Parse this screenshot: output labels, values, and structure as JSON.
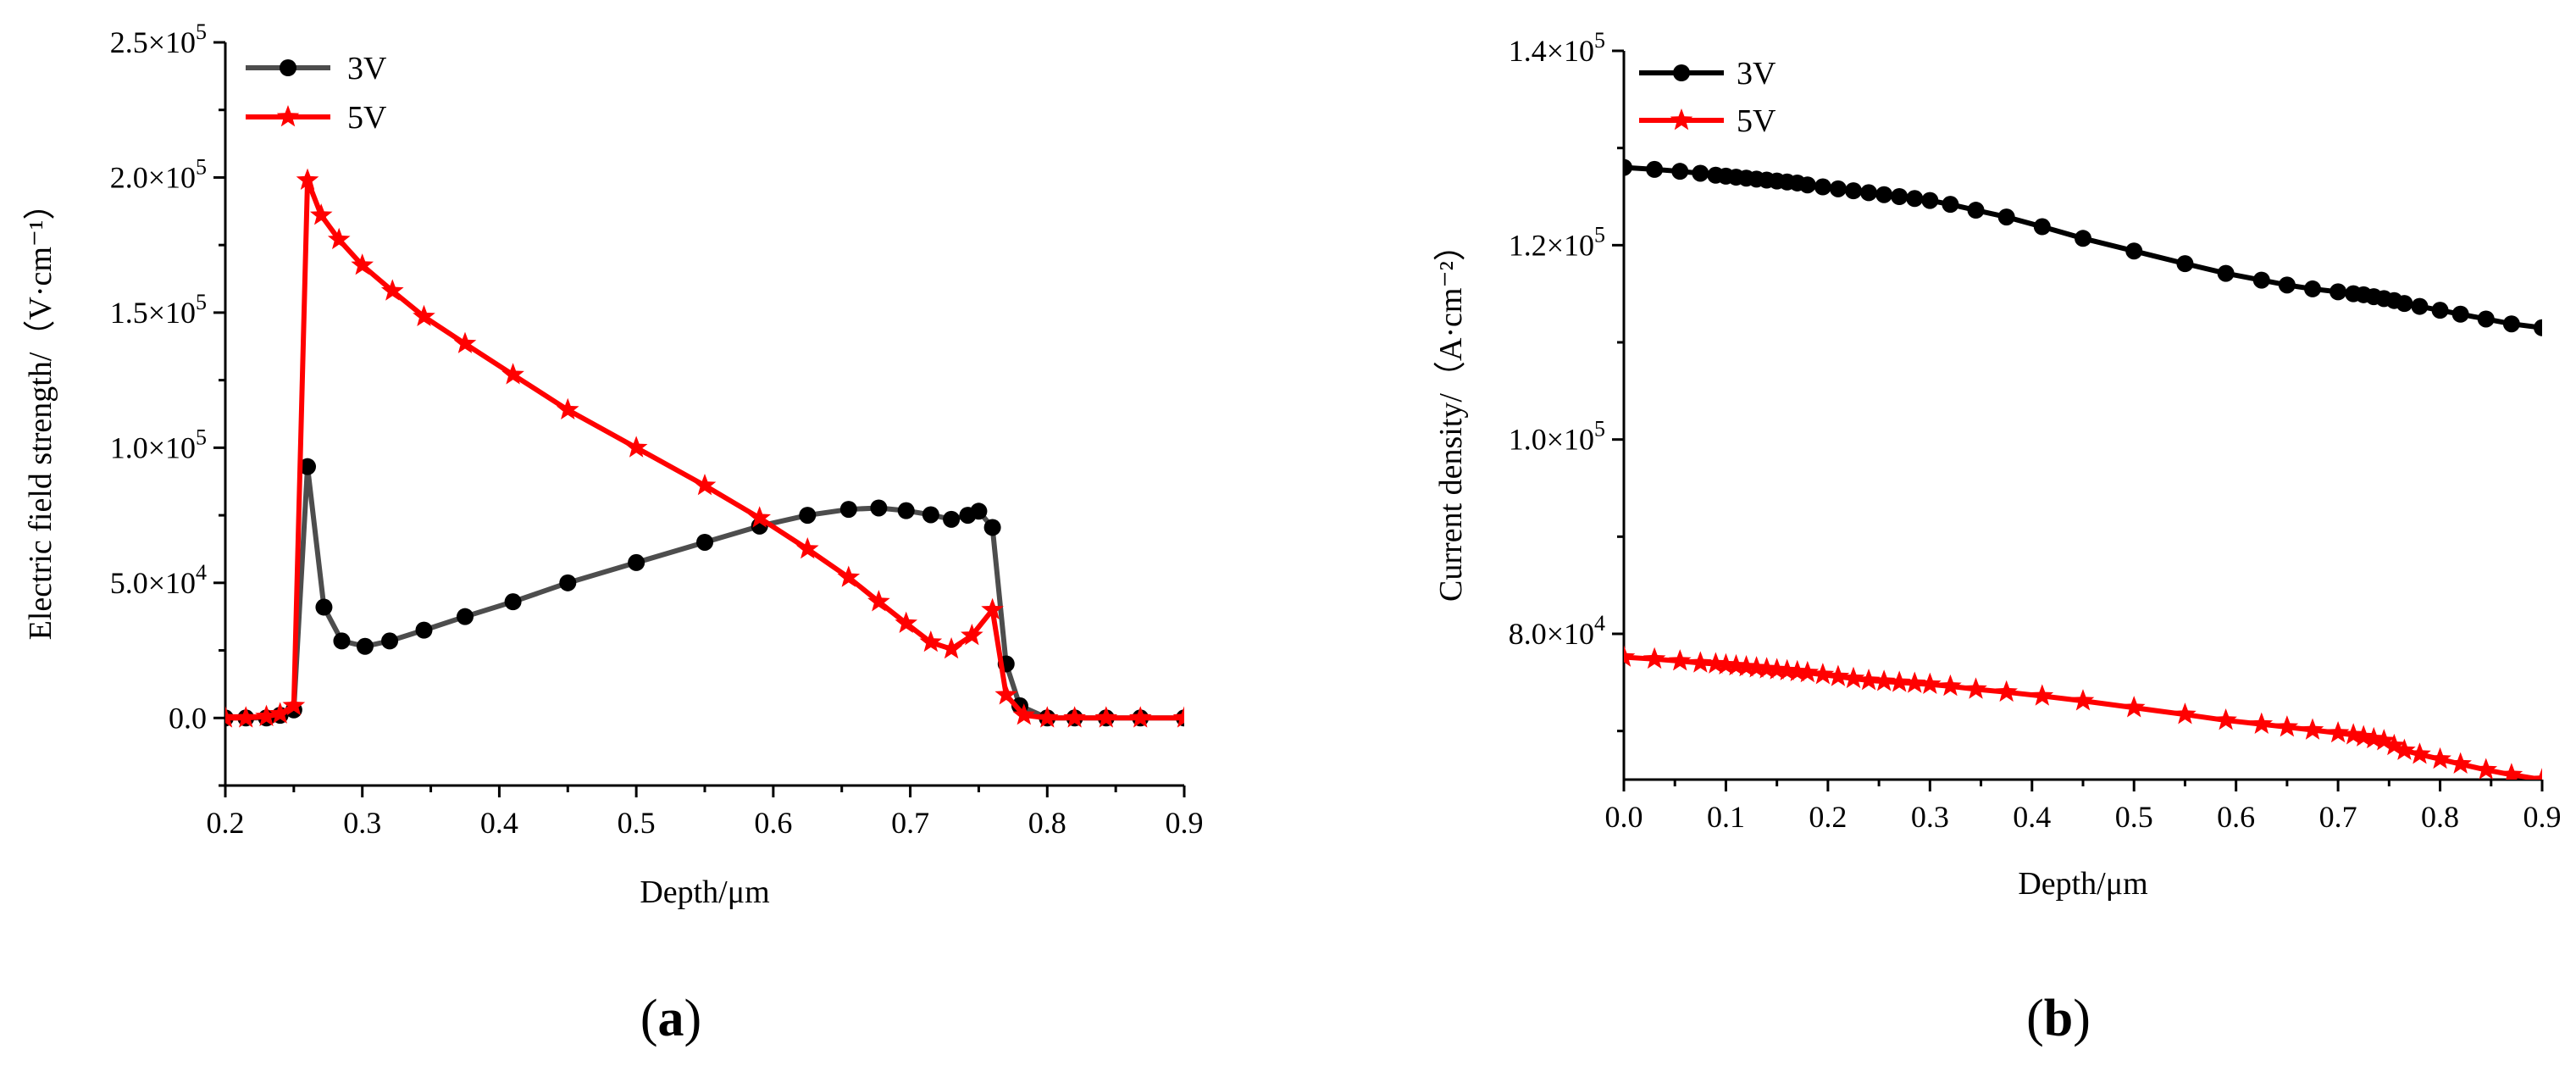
{
  "chart_data": [
    {
      "type": "line",
      "panel_label": "a",
      "xlabel": "Depth/μm",
      "ylabel": "Electric field strength/（V·cm⁻¹）",
      "xlim": [
        0.2,
        0.9
      ],
      "ylim": [
        -25000,
        250000
      ],
      "xticks": [
        0.2,
        0.3,
        0.4,
        0.5,
        0.6,
        0.7,
        0.8,
        0.9
      ],
      "xtick_labels": [
        "0.2",
        "0.3",
        "0.4",
        "0.5",
        "0.6",
        "0.7",
        "0.8",
        "0.9"
      ],
      "yticks": [
        0,
        50000,
        100000,
        150000,
        200000,
        250000
      ],
      "ytick_labels": [
        {
          "mant": "0.0",
          "exp": ""
        },
        {
          "mant": "5.0×10",
          "exp": "4"
        },
        {
          "mant": "1.0×10",
          "exp": "5"
        },
        {
          "mant": "1.5×10",
          "exp": "5"
        },
        {
          "mant": "2.0×10",
          "exp": "5"
        },
        {
          "mant": "2.5×10",
          "exp": "5"
        }
      ],
      "legend_position": "top-left",
      "series": [
        {
          "name": "3V",
          "color": "#4d4d4d",
          "marker": "circle",
          "x": [
            0.2,
            0.215,
            0.23,
            0.24,
            0.25,
            0.26,
            0.272,
            0.285,
            0.302,
            0.32,
            0.345,
            0.375,
            0.41,
            0.45,
            0.5,
            0.55,
            0.59,
            0.625,
            0.655,
            0.677,
            0.697,
            0.715,
            0.73,
            0.742,
            0.75,
            0.76,
            0.77,
            0.78,
            0.8,
            0.82,
            0.843,
            0.868,
            0.9
          ],
          "y": [
            0,
            0,
            0,
            1000,
            3000,
            93000,
            41000,
            28500,
            26500,
            28500,
            32500,
            37500,
            43000,
            50000,
            57500,
            65000,
            71000,
            75000,
            77200,
            77700,
            76700,
            75200,
            73500,
            75000,
            76500,
            70500,
            20000,
            4500,
            0,
            0,
            0,
            0,
            0
          ]
        },
        {
          "name": "5V",
          "color": "#ff0000",
          "marker": "star",
          "x": [
            0.2,
            0.215,
            0.23,
            0.24,
            0.25,
            0.26,
            0.27,
            0.283,
            0.3,
            0.322,
            0.345,
            0.375,
            0.41,
            0.45,
            0.5,
            0.55,
            0.59,
            0.625,
            0.655,
            0.677,
            0.697,
            0.715,
            0.73,
            0.745,
            0.76,
            0.77,
            0.783,
            0.8,
            0.82,
            0.843,
            0.868,
            0.9
          ],
          "y": [
            0,
            0,
            500,
            1500,
            4500,
            199000,
            186000,
            177000,
            167500,
            158000,
            148500,
            138500,
            127000,
            114000,
            100000,
            86000,
            74000,
            62500,
            52000,
            43000,
            35000,
            28000,
            25500,
            30500,
            40000,
            8500,
            1000,
            0,
            0,
            0,
            0,
            0
          ]
        }
      ]
    },
    {
      "type": "line",
      "panel_label": "b",
      "xlabel": "Depth/μm",
      "ylabel": "Current density/（A·cm⁻²）",
      "xlim": [
        0.0,
        0.9
      ],
      "ylim": [
        65000,
        140000
      ],
      "xticks": [
        0.0,
        0.1,
        0.2,
        0.3,
        0.4,
        0.5,
        0.6,
        0.7,
        0.8,
        0.9
      ],
      "xtick_labels": [
        "0.0",
        "0.1",
        "0.2",
        "0.3",
        "0.4",
        "0.5",
        "0.6",
        "0.7",
        "0.8",
        "0.9"
      ],
      "yticks": [
        80000,
        100000,
        120000,
        140000
      ],
      "ytick_labels": [
        {
          "mant": "8.0×10",
          "exp": "4"
        },
        {
          "mant": "1.0×10",
          "exp": "5"
        },
        {
          "mant": "1.2×10",
          "exp": "5"
        },
        {
          "mant": "1.4×10",
          "exp": "5"
        }
      ],
      "legend_position": "top-left",
      "series": [
        {
          "name": "3V",
          "color": "#000000",
          "marker": "circle",
          "x": [
            0.0,
            0.03,
            0.055,
            0.075,
            0.09,
            0.1,
            0.11,
            0.12,
            0.13,
            0.14,
            0.15,
            0.16,
            0.17,
            0.18,
            0.195,
            0.21,
            0.225,
            0.24,
            0.255,
            0.27,
            0.285,
            0.3,
            0.32,
            0.345,
            0.375,
            0.41,
            0.45,
            0.5,
            0.55,
            0.59,
            0.625,
            0.65,
            0.675,
            0.7,
            0.715,
            0.725,
            0.735,
            0.745,
            0.755,
            0.765,
            0.78,
            0.8,
            0.82,
            0.845,
            0.87,
            0.9
          ],
          "y": [
            128000,
            127800,
            127600,
            127400,
            127200,
            127100,
            127000,
            126900,
            126800,
            126700,
            126600,
            126500,
            126400,
            126200,
            126000,
            125800,
            125600,
            125400,
            125200,
            125000,
            124800,
            124600,
            124200,
            123600,
            122900,
            121900,
            120700,
            119400,
            118100,
            117100,
            116400,
            115900,
            115500,
            115200,
            115000,
            114900,
            114700,
            114500,
            114300,
            114000,
            113700,
            113300,
            112900,
            112400,
            111900,
            111500
          ]
        },
        {
          "name": "5V",
          "color": "#ff0000",
          "marker": "star",
          "x": [
            0.0,
            0.03,
            0.055,
            0.075,
            0.09,
            0.1,
            0.11,
            0.12,
            0.13,
            0.14,
            0.15,
            0.16,
            0.17,
            0.18,
            0.195,
            0.21,
            0.225,
            0.24,
            0.255,
            0.27,
            0.285,
            0.3,
            0.32,
            0.345,
            0.375,
            0.41,
            0.45,
            0.5,
            0.55,
            0.59,
            0.625,
            0.65,
            0.675,
            0.7,
            0.715,
            0.725,
            0.735,
            0.745,
            0.755,
            0.765,
            0.78,
            0.8,
            0.82,
            0.845,
            0.87,
            0.9
          ],
          "y": [
            77600,
            77400,
            77200,
            77000,
            76900,
            76800,
            76700,
            76600,
            76500,
            76400,
            76300,
            76200,
            76100,
            76000,
            75800,
            75600,
            75400,
            75200,
            75100,
            75000,
            74900,
            74800,
            74600,
            74300,
            74000,
            73600,
            73100,
            72400,
            71700,
            71100,
            70700,
            70400,
            70100,
            69800,
            69600,
            69400,
            69200,
            69000,
            68500,
            68000,
            67600,
            67100,
            66600,
            66000,
            65500,
            65000
          ]
        }
      ]
    }
  ]
}
